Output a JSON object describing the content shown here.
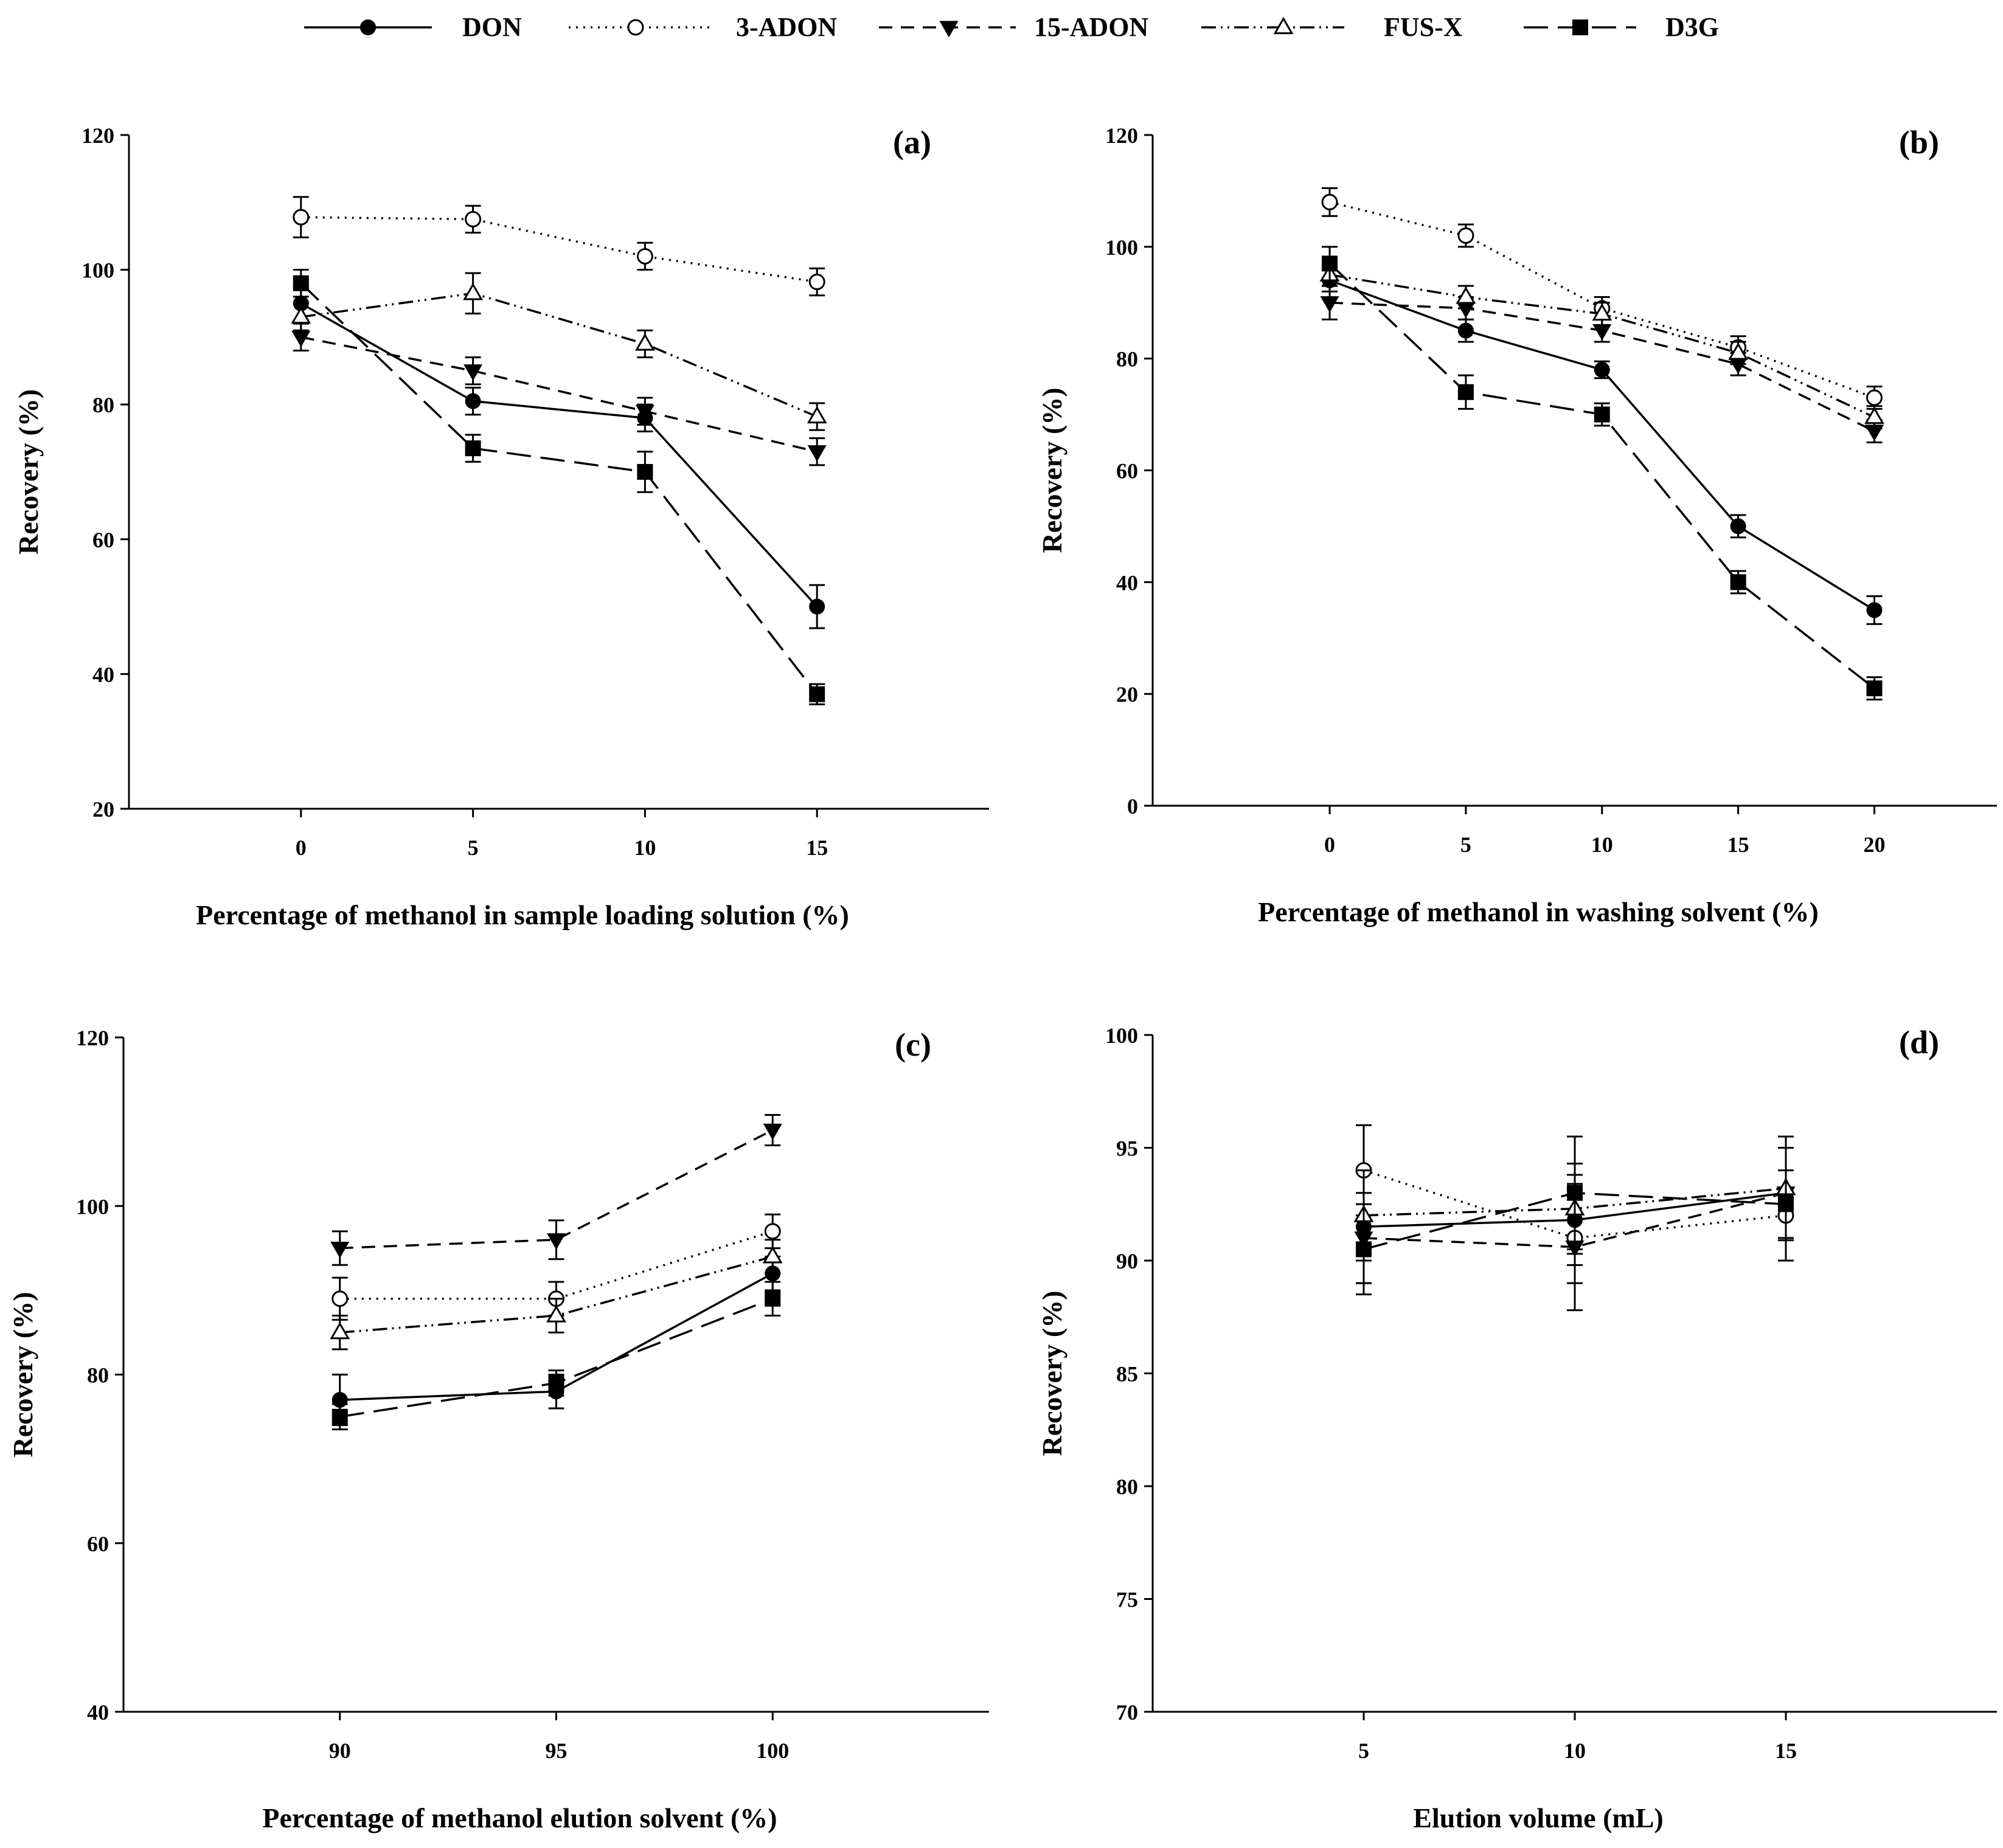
{
  "legend": {
    "entries": [
      {
        "label": "DON",
        "marker": "filled-circle-icon",
        "dash": "solid"
      },
      {
        "label": "3-ADON",
        "marker": "open-circle-icon",
        "dash": "dotted"
      },
      {
        "label": "15-ADON",
        "marker": "filled-triangle-down-icon",
        "dash": "dashed"
      },
      {
        "label": "FUS-X",
        "marker": "open-triangle-up-icon",
        "dash": "dash-dot-dot"
      },
      {
        "label": "D3G",
        "marker": "filled-square-icon",
        "dash": "long-dash"
      }
    ]
  },
  "chart_data": [
    {
      "type": "line",
      "panel_label": "(a)",
      "title": "",
      "xlabel": "Percentage of methanol in sample loading solution (%)",
      "ylabel": "Recovery (%)",
      "xlim": [
        -5,
        20
      ],
      "ylim": [
        20,
        120
      ],
      "xticks": [
        0,
        5,
        10,
        15
      ],
      "yticks": [
        20,
        40,
        60,
        80,
        100,
        120
      ],
      "x": [
        0,
        5,
        10,
        15
      ],
      "series": [
        {
          "name": "DON",
          "values": [
            95,
            80.5,
            78,
            50
          ],
          "errors": [
            2.5,
            2,
            2,
            3.2
          ]
        },
        {
          "name": "3-ADON",
          "values": [
            107.8,
            107.5,
            102,
            98.2
          ],
          "errors": [
            3,
            2,
            2,
            2
          ]
        },
        {
          "name": "15-ADON",
          "values": [
            90,
            85,
            79,
            73
          ],
          "errors": [
            2,
            2,
            2,
            2
          ]
        },
        {
          "name": "FUS-X",
          "values": [
            93,
            96.5,
            89,
            78.2
          ],
          "errors": [
            2,
            3,
            2,
            2
          ]
        },
        {
          "name": "D3G",
          "values": [
            98,
            73.5,
            70,
            37
          ],
          "errors": [
            2,
            2,
            3,
            1.5
          ]
        }
      ]
    },
    {
      "type": "line",
      "panel_label": "(b)",
      "title": "",
      "xlabel": "Percentage of methanol in washing solvent (%)",
      "ylabel": "Recovery (%)",
      "xlim": [
        -6.5,
        24.5
      ],
      "ylim": [
        0,
        120
      ],
      "xticks": [
        0,
        5,
        10,
        15,
        20
      ],
      "yticks": [
        0,
        20,
        40,
        60,
        80,
        100,
        120
      ],
      "x": [
        0,
        5,
        10,
        15,
        20
      ],
      "series": [
        {
          "name": "DON",
          "values": [
            94,
            85,
            78,
            50,
            35
          ],
          "errors": [
            2,
            2,
            1.5,
            2,
            2.5
          ]
        },
        {
          "name": "3-ADON",
          "values": [
            108,
            102,
            89,
            82,
            73
          ],
          "errors": [
            2.5,
            2,
            2,
            2,
            2
          ]
        },
        {
          "name": "15-ADON",
          "values": [
            90,
            89,
            85,
            79,
            67
          ],
          "errors": [
            3,
            2,
            2,
            2,
            2
          ]
        },
        {
          "name": "FUS-X",
          "values": [
            95,
            91,
            88,
            81,
            69.5
          ],
          "errors": [
            2,
            2,
            2,
            2,
            2
          ]
        },
        {
          "name": "D3G",
          "values": [
            97,
            74,
            70,
            40,
            21
          ],
          "errors": [
            3,
            3,
            2,
            2,
            2
          ]
        }
      ]
    },
    {
      "type": "line",
      "panel_label": "(c)",
      "title": "",
      "xlabel": "Percentage of methanol elution solvent (%)",
      "ylabel": "Recovery (%)",
      "xlim": [
        85,
        105
      ],
      "ylim": [
        40,
        120
      ],
      "xticks": [
        90,
        95,
        100
      ],
      "yticks": [
        40,
        60,
        80,
        100,
        120
      ],
      "x": [
        90,
        95,
        100
      ],
      "series": [
        {
          "name": "DON",
          "values": [
            77,
            78,
            92
          ],
          "errors": [
            3,
            2,
            2
          ]
        },
        {
          "name": "3-ADON",
          "values": [
            89,
            89,
            97
          ],
          "errors": [
            2.5,
            2,
            2
          ]
        },
        {
          "name": "15-ADON",
          "values": [
            95,
            96,
            109
          ],
          "errors": [
            2,
            2.3,
            1.8
          ]
        },
        {
          "name": "FUS-X",
          "values": [
            85,
            87,
            94
          ],
          "errors": [
            2,
            2,
            2
          ]
        },
        {
          "name": "D3G",
          "values": [
            75,
            79,
            89
          ],
          "errors": [
            1.5,
            1.5,
            2
          ]
        }
      ]
    },
    {
      "type": "line",
      "panel_label": "(d)",
      "title": "",
      "xlabel": "Elution volume (mL)",
      "ylabel": "Recovery (%)",
      "xlim": [
        0,
        20
      ],
      "ylim": [
        70,
        100
      ],
      "xticks": [
        5,
        10,
        15
      ],
      "yticks": [
        70,
        75,
        80,
        85,
        90,
        95,
        100
      ],
      "x": [
        5,
        10,
        15
      ],
      "series": [
        {
          "name": "DON",
          "values": [
            91.5,
            91.8,
            93
          ],
          "errors": [
            2.5,
            2,
            2
          ]
        },
        {
          "name": "3-ADON",
          "values": [
            94,
            91,
            92
          ],
          "errors": [
            2,
            2,
            2
          ]
        },
        {
          "name": "15-ADON",
          "values": [
            91,
            90.6,
            93
          ],
          "errors": [
            2,
            2.8,
            2
          ]
        },
        {
          "name": "FUS-X",
          "values": [
            92,
            92.3,
            93.2
          ],
          "errors": [
            2,
            2,
            2.3
          ]
        },
        {
          "name": "D3G",
          "values": [
            90.5,
            93,
            92.5
          ],
          "errors": [
            2,
            2.5,
            2.5
          ]
        }
      ]
    }
  ]
}
